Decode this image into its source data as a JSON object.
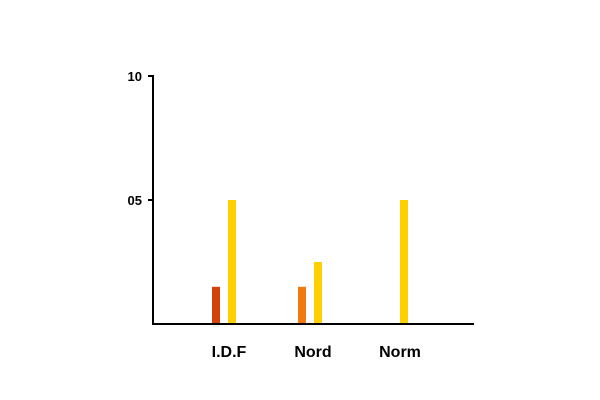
{
  "chart_data": {
    "type": "bar",
    "title": "",
    "xlabel": "",
    "ylabel": "",
    "ylim": [
      0,
      10
    ],
    "y_ticks": [
      {
        "value": 10,
        "label": "10"
      },
      {
        "value": 5,
        "label": "05"
      }
    ],
    "categories": [
      "I.D.F",
      "Nord",
      "Norm"
    ],
    "series": [
      {
        "color": "#d2430a",
        "values": [
          1.5,
          null,
          null
        ]
      },
      {
        "color": "#f07a10",
        "values": [
          null,
          1.5,
          null
        ]
      },
      {
        "color": "#ffd000",
        "values": [
          5,
          2.5,
          5
        ]
      }
    ],
    "grid": false,
    "legend": "none"
  }
}
